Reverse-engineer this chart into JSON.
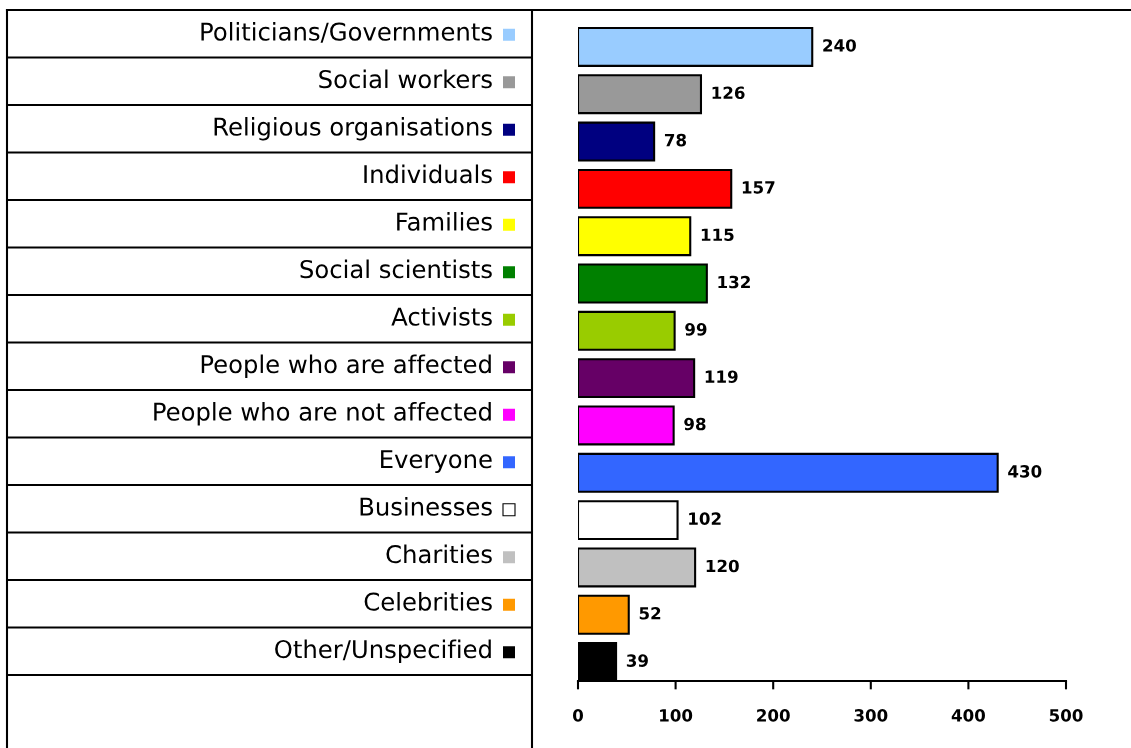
{
  "chart_data": {
    "type": "bar",
    "orientation": "horizontal",
    "categories": [
      "Politicians/Governments",
      "Social workers",
      "Religious organisations",
      "Individuals",
      "Families",
      "Social scientists",
      "Activists",
      "People who are affected",
      "People who are not affected",
      "Everyone",
      "Businesses",
      "Charities",
      "Celebrities",
      "Other/Unspecified"
    ],
    "values": [
      240,
      126,
      78,
      157,
      115,
      132,
      99,
      119,
      98,
      430,
      102,
      120,
      52,
      39
    ],
    "colors": [
      "#99ccff",
      "#999999",
      "#000080",
      "#ff0000",
      "#ffff00",
      "#008000",
      "#99cc00",
      "#660066",
      "#ff00ff",
      "#3366ff",
      "#ffffff",
      "#c0c0c0",
      "#ff9900",
      "#000000"
    ],
    "xlim": [
      0,
      500
    ],
    "xticks": [
      0,
      100,
      200,
      300,
      400,
      500
    ],
    "data_labels": true,
    "grid": false
  }
}
